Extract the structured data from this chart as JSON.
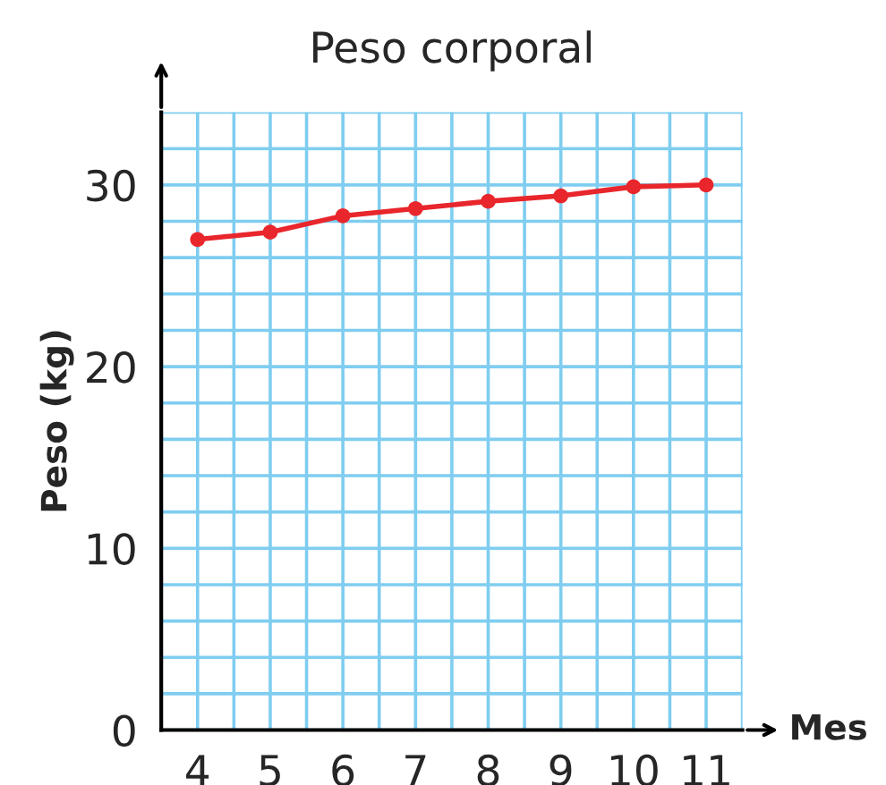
{
  "chart_data": {
    "type": "line",
    "title": "Peso corporal",
    "xlabel": "Mes",
    "ylabel": "Peso (kg)",
    "x": [
      4,
      5,
      6,
      7,
      8,
      9,
      10,
      11
    ],
    "series": [
      {
        "color": "#e8262c",
        "values": [
          27,
          27.4,
          28.3,
          28.7,
          29.1,
          29.4,
          29.9,
          30
        ]
      }
    ],
    "xlim": [
      3.5,
      11.5
    ],
    "ylim": [
      0,
      34
    ],
    "xticks": [
      4,
      5,
      6,
      7,
      8,
      9,
      10,
      11
    ],
    "yticks": [
      0,
      10,
      20,
      30
    ],
    "grid": true,
    "marker": "circle",
    "line_style": "solid"
  }
}
